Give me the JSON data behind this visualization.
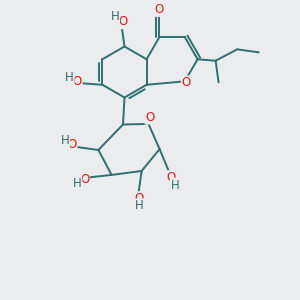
{
  "bg_color": "#eaeced",
  "bond_color": "#2d7070",
  "atom_color_O": "#ee1111",
  "atom_color_H": "#2d7070",
  "bond_lw": 1.4,
  "font_size_atom": 8.5,
  "fig_size": [
    3.0,
    3.0
  ],
  "dpi": 100,
  "xlim": [
    0,
    10
  ],
  "ylim": [
    0,
    10
  ]
}
